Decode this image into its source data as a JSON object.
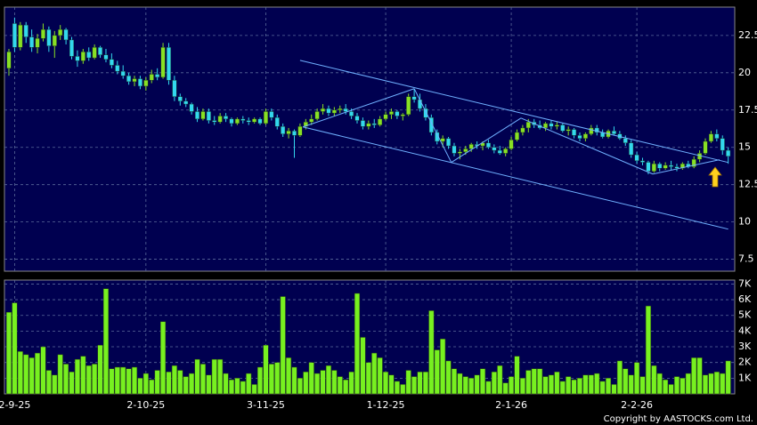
{
  "chart_data": [
    {
      "type": "candlestick",
      "up_color": "#88e024",
      "down_color": "#33d8ee",
      "ylim": [
        6.7,
        24.4
      ],
      "yticks": [
        7.5,
        10,
        12.5,
        15,
        17.5,
        20,
        22.5
      ],
      "grid": true,
      "ohlc": [
        [
          20.3,
          21.6,
          19.8,
          21.4
        ],
        [
          23.3,
          23.7,
          21.4,
          21.7
        ],
        [
          21.7,
          23.4,
          21.5,
          23.2
        ],
        [
          23.2,
          23.4,
          22.0,
          22.4
        ],
        [
          22.4,
          22.9,
          21.4,
          21.7
        ],
        [
          21.7,
          22.6,
          21.3,
          22.3
        ],
        [
          22.3,
          23.3,
          22.1,
          22.9
        ],
        [
          22.9,
          23.1,
          21.4,
          21.8
        ],
        [
          21.8,
          22.8,
          21.0,
          22.5
        ],
        [
          22.5,
          23.2,
          22.2,
          22.9
        ],
        [
          22.9,
          23.0,
          21.9,
          22.2
        ],
        [
          22.2,
          22.4,
          20.9,
          21.1
        ],
        [
          21.1,
          21.5,
          20.4,
          20.8
        ],
        [
          20.8,
          21.6,
          20.6,
          21.4
        ],
        [
          21.4,
          21.7,
          20.8,
          21.0
        ],
        [
          21.0,
          21.9,
          20.9,
          21.7
        ],
        [
          21.7,
          21.8,
          21.0,
          21.2
        ],
        [
          21.2,
          21.6,
          20.7,
          20.9
        ],
        [
          20.9,
          21.3,
          20.3,
          20.5
        ],
        [
          20.5,
          20.8,
          19.9,
          20.1
        ],
        [
          20.1,
          20.5,
          19.6,
          19.8
        ],
        [
          19.8,
          20.0,
          19.2,
          19.4
        ],
        [
          19.4,
          19.8,
          19.1,
          19.6
        ],
        [
          19.6,
          19.8,
          18.9,
          19.1
        ],
        [
          19.1,
          19.7,
          18.8,
          19.5
        ],
        [
          19.5,
          20.2,
          19.3,
          19.9
        ],
        [
          19.9,
          20.3,
          19.5,
          19.7
        ],
        [
          19.7,
          22.0,
          19.6,
          21.7
        ],
        [
          21.7,
          22.0,
          19.2,
          19.5
        ],
        [
          19.5,
          19.8,
          18.1,
          18.4
        ],
        [
          18.4,
          18.6,
          17.8,
          18.1
        ],
        [
          18.1,
          18.3,
          17.7,
          17.9
        ],
        [
          17.9,
          18.0,
          17.2,
          17.4
        ],
        [
          17.4,
          17.7,
          16.7,
          16.9
        ],
        [
          16.9,
          17.6,
          16.8,
          17.4
        ],
        [
          17.4,
          17.6,
          16.6,
          16.8
        ],
        [
          16.8,
          17.1,
          16.5,
          16.7
        ],
        [
          16.7,
          17.3,
          16.6,
          17.1
        ],
        [
          17.1,
          17.3,
          16.7,
          16.9
        ],
        [
          16.9,
          17.0,
          16.4,
          16.6
        ],
        [
          16.6,
          17.0,
          16.5,
          16.9
        ],
        [
          16.9,
          17.1,
          16.6,
          16.8
        ],
        [
          16.8,
          17.0,
          16.5,
          16.7
        ],
        [
          16.7,
          17.0,
          16.6,
          16.9
        ],
        [
          16.9,
          17.0,
          16.5,
          16.6
        ],
        [
          16.6,
          17.6,
          16.5,
          17.4
        ],
        [
          17.4,
          17.6,
          16.8,
          17.0
        ],
        [
          17.0,
          17.2,
          16.2,
          16.4
        ],
        [
          16.4,
          16.6,
          15.7,
          15.9
        ],
        [
          15.9,
          16.3,
          15.6,
          16.1
        ],
        [
          16.1,
          16.2,
          14.3,
          15.8
        ],
        [
          15.8,
          16.6,
          15.7,
          16.4
        ],
        [
          16.4,
          16.9,
          16.2,
          16.7
        ],
        [
          16.7,
          17.2,
          16.5,
          16.9
        ],
        [
          16.9,
          17.6,
          16.8,
          17.4
        ],
        [
          17.4,
          17.9,
          17.2,
          17.6
        ],
        [
          17.6,
          17.8,
          17.1,
          17.3
        ],
        [
          17.3,
          17.7,
          17.1,
          17.5
        ],
        [
          17.5,
          17.8,
          17.3,
          17.6
        ],
        [
          17.6,
          17.9,
          17.2,
          17.4
        ],
        [
          17.4,
          17.6,
          16.9,
          17.1
        ],
        [
          17.1,
          17.3,
          16.6,
          16.8
        ],
        [
          16.8,
          17.0,
          16.2,
          16.4
        ],
        [
          16.4,
          16.8,
          16.2,
          16.6
        ],
        [
          16.6,
          16.9,
          16.3,
          16.5
        ],
        [
          16.5,
          17.1,
          16.4,
          16.9
        ],
        [
          16.9,
          17.4,
          16.8,
          17.2
        ],
        [
          17.2,
          17.6,
          16.9,
          17.4
        ],
        [
          17.4,
          17.5,
          16.9,
          17.1
        ],
        [
          17.1,
          17.3,
          16.8,
          17.2
        ],
        [
          17.2,
          18.6,
          17.1,
          18.4
        ],
        [
          18.4,
          18.9,
          18.0,
          18.2
        ],
        [
          18.2,
          18.6,
          17.4,
          17.6
        ],
        [
          17.6,
          17.9,
          16.8,
          17.0
        ],
        [
          17.0,
          17.2,
          15.8,
          16.0
        ],
        [
          16.0,
          16.2,
          15.2,
          15.4
        ],
        [
          15.4,
          15.8,
          15.0,
          15.6
        ],
        [
          15.6,
          15.7,
          14.9,
          15.1
        ],
        [
          15.1,
          15.3,
          14.4,
          14.6
        ],
        [
          14.6,
          14.9,
          14.2,
          14.7
        ],
        [
          14.7,
          15.1,
          14.5,
          14.9
        ],
        [
          14.9,
          15.3,
          14.7,
          15.2
        ],
        [
          15.2,
          15.4,
          14.9,
          15.1
        ],
        [
          15.1,
          15.4,
          14.8,
          15.3
        ],
        [
          15.3,
          15.5,
          14.9,
          15.0
        ],
        [
          15.0,
          15.2,
          14.6,
          14.8
        ],
        [
          14.8,
          15.1,
          14.5,
          14.6
        ],
        [
          14.6,
          15.0,
          14.4,
          14.9
        ],
        [
          14.9,
          15.7,
          14.8,
          15.5
        ],
        [
          15.5,
          16.2,
          15.4,
          16.0
        ],
        [
          16.0,
          16.5,
          15.8,
          16.3
        ],
        [
          16.3,
          16.9,
          16.0,
          16.7
        ],
        [
          16.7,
          16.9,
          16.3,
          16.5
        ],
        [
          16.5,
          16.8,
          16.2,
          16.3
        ],
        [
          16.3,
          16.7,
          16.1,
          16.6
        ],
        [
          16.6,
          16.8,
          16.2,
          16.4
        ],
        [
          16.4,
          16.7,
          16.2,
          16.5
        ],
        [
          16.5,
          16.6,
          16.0,
          16.1
        ],
        [
          16.1,
          16.4,
          15.8,
          16.2
        ],
        [
          16.2,
          16.3,
          15.6,
          15.8
        ],
        [
          15.8,
          16.0,
          15.4,
          15.6
        ],
        [
          15.6,
          16.0,
          15.4,
          15.9
        ],
        [
          15.9,
          16.5,
          15.8,
          16.3
        ],
        [
          16.3,
          16.5,
          15.8,
          16.0
        ],
        [
          16.0,
          16.2,
          15.6,
          15.7
        ],
        [
          15.7,
          16.2,
          15.6,
          16.1
        ],
        [
          16.1,
          16.4,
          15.8,
          15.9
        ],
        [
          15.9,
          16.1,
          15.5,
          15.6
        ],
        [
          15.6,
          15.8,
          15.1,
          15.3
        ],
        [
          15.3,
          15.5,
          14.3,
          14.5
        ],
        [
          14.5,
          14.7,
          13.9,
          14.1
        ],
        [
          14.1,
          14.3,
          13.8,
          14.0
        ],
        [
          14.0,
          14.1,
          13.2,
          13.4
        ],
        [
          13.4,
          14.1,
          13.3,
          13.9
        ],
        [
          13.9,
          14.0,
          13.4,
          13.6
        ],
        [
          13.6,
          14.0,
          13.5,
          13.8
        ],
        [
          13.8,
          14.1,
          13.5,
          13.7
        ],
        [
          13.7,
          13.9,
          13.4,
          13.6
        ],
        [
          13.6,
          14.0,
          13.5,
          13.9
        ],
        [
          13.9,
          14.1,
          13.6,
          13.7
        ],
        [
          13.7,
          14.4,
          13.6,
          14.2
        ],
        [
          14.2,
          14.8,
          14.0,
          14.6
        ],
        [
          14.6,
          15.6,
          14.5,
          15.4
        ],
        [
          15.4,
          16.1,
          15.3,
          15.9
        ],
        [
          15.9,
          16.2,
          15.4,
          15.6
        ],
        [
          15.6,
          15.8,
          14.5,
          14.8
        ],
        [
          14.8,
          15.0,
          13.9,
          14.4
        ]
      ],
      "trendline_color": "#6fb0ff",
      "trendlines": [
        {
          "from": [
            51,
            20.83
          ],
          "to": [
            126,
            13.99
          ]
        },
        {
          "from": [
            51.5,
            16.37
          ],
          "to": [
            126,
            9.52
          ]
        },
        {
          "from": [
            51.5,
            16.37
          ],
          "to": [
            71,
            18.93
          ]
        },
        {
          "from": [
            71,
            18.93
          ],
          "to": [
            77.5,
            13.99
          ]
        },
        {
          "from": [
            77.5,
            13.99
          ],
          "to": [
            89.7,
            16.96
          ]
        },
        {
          "from": [
            89.7,
            16.96
          ],
          "to": [
            112.8,
            13.21
          ]
        },
        {
          "from": [
            112.8,
            13.21
          ],
          "to": [
            124.5,
            14.17
          ]
        }
      ]
    },
    {
      "type": "bar",
      "color": "#77f020",
      "ylim": [
        0,
        7250
      ],
      "yticks": [
        {
          "value": 1000,
          "label": "1K"
        },
        {
          "value": 2000,
          "label": "2K"
        },
        {
          "value": 3000,
          "label": "3K"
        },
        {
          "value": 4000,
          "label": "4K"
        },
        {
          "value": 5000,
          "label": "5K"
        },
        {
          "value": 6000,
          "label": "6K"
        },
        {
          "value": 7000,
          "label": "7K"
        }
      ],
      "grid": true,
      "categories": [
        null,
        "2-9-25",
        null,
        null,
        null,
        null,
        null,
        null,
        null,
        null,
        null,
        null,
        null,
        null,
        null,
        null,
        null,
        null,
        null,
        null,
        null,
        null,
        null,
        null,
        "2-10-25",
        null,
        null,
        null,
        null,
        null,
        null,
        null,
        null,
        null,
        null,
        null,
        null,
        null,
        null,
        null,
        null,
        null,
        null,
        null,
        null,
        "3-11-25",
        null,
        null,
        null,
        null,
        null,
        null,
        null,
        null,
        null,
        null,
        null,
        null,
        null,
        null,
        null,
        null,
        null,
        null,
        null,
        null,
        "1-12-25",
        null,
        null,
        null,
        null,
        null,
        null,
        null,
        null,
        null,
        null,
        null,
        null,
        null,
        null,
        null,
        null,
        null,
        null,
        null,
        null,
        null,
        "2-1-26",
        null,
        null,
        null,
        null,
        null,
        null,
        null,
        null,
        null,
        null,
        null,
        null,
        null,
        null,
        null,
        null,
        null,
        null,
        null,
        null,
        null,
        "2-2-26",
        null,
        null,
        null,
        null,
        null,
        null,
        null,
        null,
        null,
        null,
        null,
        null,
        null,
        null,
        null,
        null
      ],
      "values": [
        5200,
        5800,
        2700,
        2500,
        2300,
        2600,
        3000,
        1500,
        1200,
        2500,
        1900,
        1400,
        2200,
        2400,
        1800,
        1900,
        3100,
        6700,
        1600,
        1700,
        1700,
        1600,
        1700,
        1000,
        1300,
        900,
        1500,
        4600,
        1400,
        1800,
        1500,
        1100,
        1300,
        2200,
        1900,
        1200,
        2200,
        2200,
        1300,
        900,
        1000,
        800,
        1300,
        600,
        1700,
        3100,
        1900,
        2000,
        6200,
        2300,
        1700,
        1000,
        1400,
        2000,
        1300,
        1500,
        1800,
        1500,
        1100,
        900,
        1400,
        6400,
        3600,
        2000,
        2600,
        2300,
        1400,
        1200,
        800,
        600,
        1500,
        1100,
        1400,
        1400,
        5300,
        2800,
        3500,
        2100,
        1600,
        1300,
        1100,
        1000,
        1200,
        1600,
        800,
        1400,
        1800,
        700,
        1100,
        2400,
        1000,
        1500,
        1600,
        1600,
        1100,
        1200,
        1400,
        800,
        1100,
        900,
        1000,
        1200,
        1200,
        1300,
        800,
        1000,
        600,
        2100,
        1600,
        1200,
        2000,
        1100,
        5600,
        1800,
        1300,
        900,
        600,
        1100,
        1000,
        1300,
        2300,
        2300,
        1200,
        1300,
        1400,
        1300,
        2100
      ]
    }
  ],
  "footer": "Copyright by AASTOCKS.com Ltd."
}
